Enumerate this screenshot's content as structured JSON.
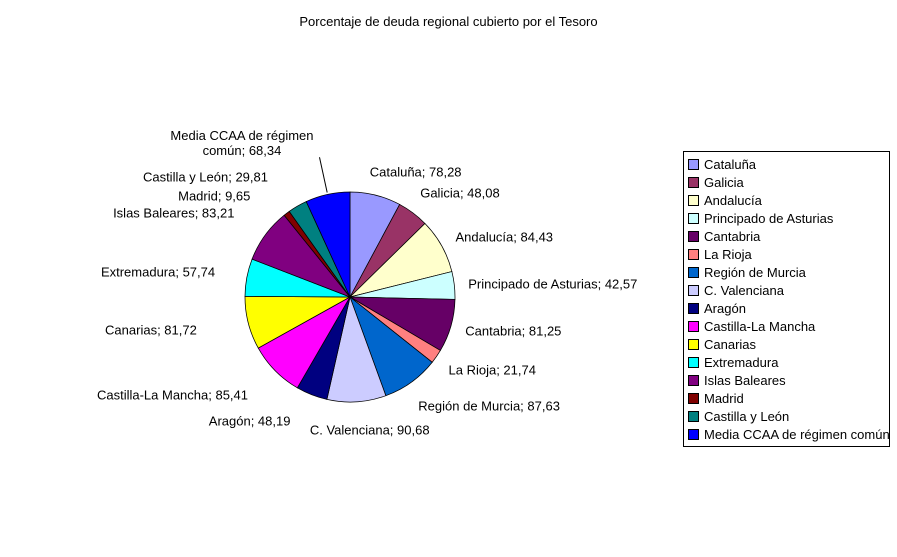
{
  "chart_data": {
    "type": "pie",
    "title": "Porcentaje de deuda regional cubierto por el Tesoro",
    "legend_position": "right",
    "direction": "clockwise",
    "start_angle_deg": 0,
    "label_format": "{label}; {value_label}",
    "slices": [
      {
        "label": "Cataluña",
        "value": 78.28,
        "value_label": "78,28",
        "color": "#9999FF"
      },
      {
        "label": "Galicia",
        "value": 48.08,
        "value_label": "48,08",
        "color": "#993366"
      },
      {
        "label": "Andalucía",
        "value": 84.43,
        "value_label": "84,43",
        "color": "#FFFFCC"
      },
      {
        "label": "Principado de Asturias",
        "value": 42.57,
        "value_label": "42,57",
        "color": "#CCFFFF"
      },
      {
        "label": "Cantabria",
        "value": 81.25,
        "value_label": "81,25",
        "color": "#660066"
      },
      {
        "label": "La Rioja",
        "value": 21.74,
        "value_label": "21,74",
        "color": "#FF8080"
      },
      {
        "label": "Región de Murcia",
        "value": 87.63,
        "value_label": "87,63",
        "color": "#0066CC"
      },
      {
        "label": "C. Valenciana",
        "value": 90.68,
        "value_label": "90,68",
        "color": "#CCCCFF"
      },
      {
        "label": "Aragón",
        "value": 48.19,
        "value_label": "48,19",
        "color": "#000080"
      },
      {
        "label": "Castilla-La Mancha",
        "value": 85.41,
        "value_label": "85,41",
        "color": "#FF00FF"
      },
      {
        "label": "Canarias",
        "value": 81.72,
        "value_label": "81,72",
        "color": "#FFFF00"
      },
      {
        "label": "Extremadura",
        "value": 57.74,
        "value_label": "57,74",
        "color": "#00FFFF"
      },
      {
        "label": "Islas Baleares",
        "value": 83.21,
        "value_label": "83,21",
        "color": "#800080"
      },
      {
        "label": "Madrid",
        "value": 9.65,
        "value_label": "9,65",
        "color": "#800000"
      },
      {
        "label": "Castilla y León",
        "value": 29.81,
        "value_label": "29,81",
        "color": "#008080"
      },
      {
        "label": "Media CCAA de régimen común",
        "value": 68.34,
        "value_label": "68,34",
        "color": "#0000FF"
      }
    ]
  }
}
